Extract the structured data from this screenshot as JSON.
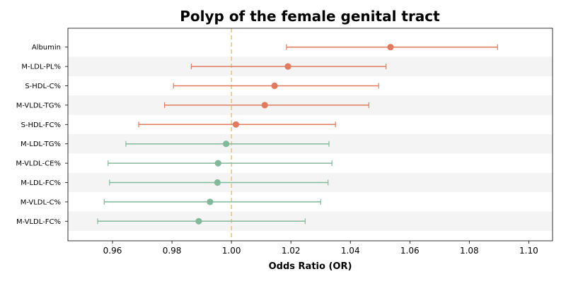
{
  "chart_data": {
    "type": "forest",
    "title": "Polyp of the female genital tract",
    "xlabel": "Odds Ratio (OR)",
    "ylabel": "",
    "xlim": [
      0.945,
      1.108
    ],
    "xticks": [
      0.96,
      0.98,
      1.0,
      1.02,
      1.04,
      1.06,
      1.08,
      1.1
    ],
    "xtick_labels": [
      "0.96",
      "0.98",
      "1.00",
      "1.02",
      "1.04",
      "1.06",
      "1.08",
      "1.10"
    ],
    "reference_line": 1.0,
    "colors": {
      "positive": "#e07b5f",
      "negative": "#82b99a",
      "reference": "#f2c46b",
      "band": "#f4f4f4"
    },
    "rows": [
      {
        "label": "Albumin",
        "or": 1.0535,
        "lower": 1.0185,
        "upper": 1.0895
      },
      {
        "label": "M-LDL-PL%",
        "or": 1.019,
        "lower": 0.9865,
        "upper": 1.052
      },
      {
        "label": "S-HDL-C%",
        "or": 1.0145,
        "lower": 0.9805,
        "upper": 1.0495
      },
      {
        "label": "M-VLDL-TG%",
        "or": 1.0112,
        "lower": 0.9775,
        "upper": 1.0462
      },
      {
        "label": "S-HDL-FC%",
        "or": 1.0015,
        "lower": 0.9688,
        "upper": 1.035
      },
      {
        "label": "M-LDL-TG%",
        "or": 0.9982,
        "lower": 0.9645,
        "upper": 1.0328
      },
      {
        "label": "M-VLDL-CE%",
        "or": 0.9955,
        "lower": 0.9585,
        "upper": 1.0338
      },
      {
        "label": "M-LDL-FC%",
        "or": 0.9953,
        "lower": 0.959,
        "upper": 1.0325
      },
      {
        "label": "M-VLDL-C%",
        "or": 0.9928,
        "lower": 0.9572,
        "upper": 1.03
      },
      {
        "label": "M-VLDL-FC%",
        "or": 0.989,
        "lower": 0.955,
        "upper": 1.0248
      }
    ]
  }
}
